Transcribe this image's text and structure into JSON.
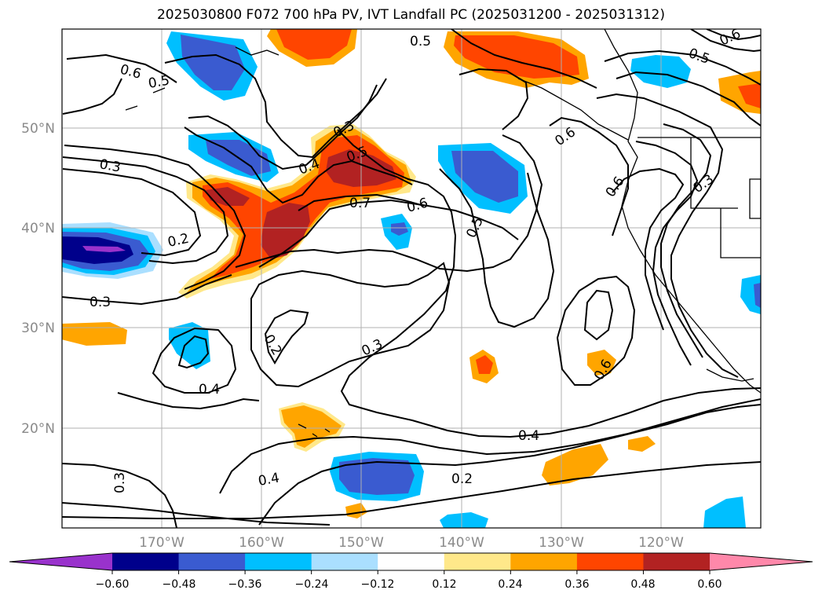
{
  "title": "2025030800 F072 700 hPa PV, IVT Landfall PC (2025031200 - 2025031312)",
  "map": {
    "projection": "PlateCarree",
    "lon_range": [
      -180,
      -110
    ],
    "lat_range": [
      10,
      60
    ],
    "gridlines": true,
    "lat_labels": [
      "50°N",
      "40°N",
      "30°N",
      "20°N"
    ],
    "lon_labels": [
      "170°W",
      "160°W",
      "150°W",
      "140°W",
      "130°W",
      "120°W"
    ]
  },
  "contour_labels": [
    "0.6",
    "0.5",
    "0.5",
    "0.6",
    "0.5",
    "0.3",
    "0.4",
    "0.5",
    "0.7",
    "0.6",
    "0.6",
    "0.6",
    "0.3",
    "0.3",
    "0.2",
    "0.5",
    "0.3",
    "0.2",
    "0.3",
    "0.4",
    "0.6",
    "0.4",
    "0.2",
    "0.4",
    "0.3"
  ],
  "colorbar": {
    "ticks": [
      "−0.60",
      "−0.48",
      "−0.36",
      "−0.24",
      "−0.12",
      "0.12",
      "0.24",
      "0.36",
      "0.48",
      "0.60"
    ],
    "colors": [
      "#9932cc",
      "#00008b",
      "#3a5bd0",
      "#00bfff",
      "#aadfff",
      "#ffffff",
      "#ffe88a",
      "#ffa500",
      "#ff4500",
      "#b22222",
      "#ff88aa"
    ]
  },
  "colors": {
    "coast": "#000000",
    "contour": "#000000",
    "grid": "#b0b0b0",
    "tick_text": "#8a8a8a"
  }
}
